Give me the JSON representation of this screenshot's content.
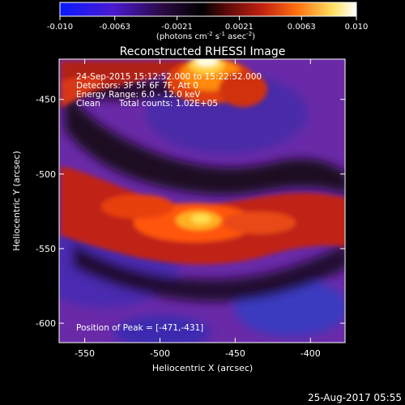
{
  "colorbar": {
    "ticks": [
      "-0.010",
      "-0.0063",
      "-0.0021",
      "0.0021",
      "0.0063",
      "0.010"
    ],
    "tick_values": [
      -0.01,
      -0.0063,
      -0.0021,
      0.0021,
      0.0063,
      0.01
    ],
    "range": [
      -0.01,
      0.01
    ],
    "units_main": "(photons cm",
    "units_exp1": "-2",
    "units_mid": " s",
    "units_exp2": "-1",
    "units_mid2": " asec",
    "units_exp3": "-2",
    "units_end": ")",
    "colors": [
      "#1a1ae6",
      "#5a1aa8",
      "#2a1030",
      "#000000",
      "#7a0e10",
      "#d03010",
      "#ff8a10",
      "#ffee70",
      "#ffffff"
    ]
  },
  "chart_data": {
    "type": "heatmap",
    "title": "Reconstructed RHESSI Image",
    "xlabel": "Heliocentric X (arcsec)",
    "ylabel": "Heliocentric Y (arcsec)",
    "xlim": [
      -567,
      -377
    ],
    "ylim": [
      -613,
      -423
    ],
    "x_ticks": [
      "-550",
      "-500",
      "-450",
      "-400"
    ],
    "x_tick_values": [
      -550,
      -500,
      -450,
      -400
    ],
    "y_ticks": [
      "-450",
      "-500",
      "-550",
      "-600"
    ],
    "y_tick_values": [
      -450,
      -500,
      -550,
      -600
    ],
    "annotations": {
      "time": "24-Sep-2015 15:12:52.000 to 15:22:52.000",
      "detectors": "Detectors: 3F 5F 6F 7F, Att 0",
      "energy": "Energy Range: 6.0 - 12.0 keV",
      "clean": "Clean",
      "counts": "Total counts: 1.02E+05",
      "peak": "Position of Peak = [-471,-431]"
    },
    "peak_position": [
      -471,
      -431
    ]
  },
  "footer": {
    "date": "25-Aug-2017 05:55"
  }
}
